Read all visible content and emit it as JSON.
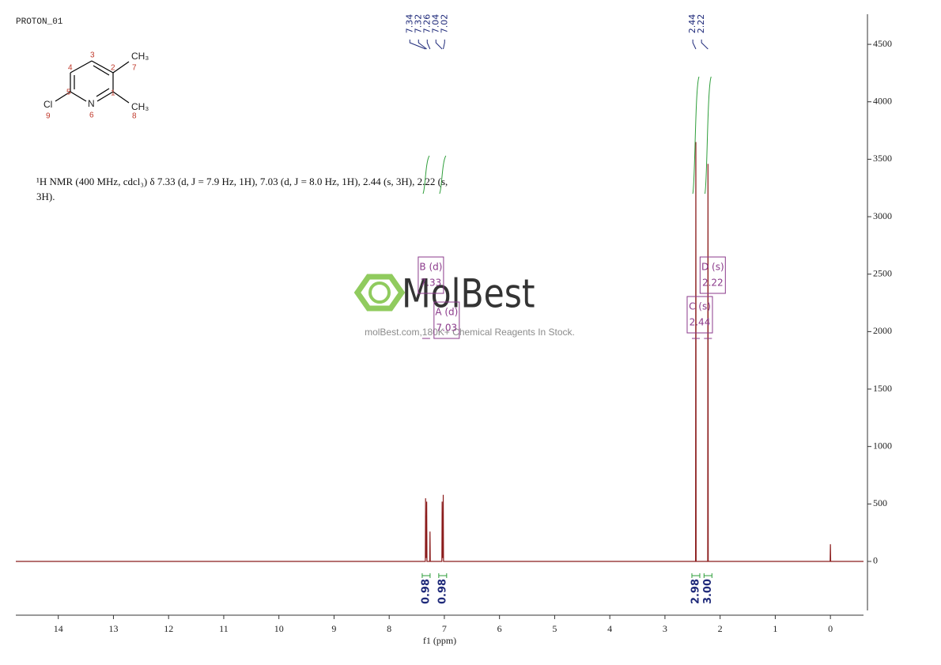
{
  "header": {
    "title": "PROTON_01"
  },
  "molecule": {
    "atoms": [
      "CH₃",
      "N",
      "Cl",
      "CH₃"
    ],
    "numbers": [
      "3",
      "4",
      "2",
      "5",
      "1",
      "6",
      "7",
      "8",
      "9"
    ]
  },
  "description": "¹H NMR (400 MHz, cdcl₃) δ 7.33 (d, J = 7.9 Hz, 1H), 7.03 (d, J = 8.0 Hz, 1H), 2.44 (s, 3H), 2.22 (s, 3H).",
  "watermark": {
    "brand": "MolBest",
    "tagline": "molBest.com,180K+ Chemical Reagents In Stock."
  },
  "chart_data": {
    "type": "spectrum",
    "x_label": "f1 (ppm)",
    "color": "#8b1c1c",
    "xlim": [
      14.77,
      -0.6
    ],
    "xticks": [
      14,
      13,
      12,
      11,
      10,
      9,
      8,
      7,
      6,
      5,
      4,
      3,
      2,
      1,
      0
    ],
    "ylim": [
      -468,
      4762
    ],
    "yticks": [
      0,
      500,
      1000,
      1500,
      2000,
      2500,
      3000,
      3500,
      4000,
      4500
    ],
    "x": [
      14.77,
      7.37,
      7.345,
      7.34,
      7.335,
      7.33,
      7.325,
      7.32,
      7.315,
      7.28,
      7.265,
      7.26,
      7.255,
      7.06,
      7.045,
      7.04,
      7.035,
      7.03,
      7.025,
      7.02,
      7.015,
      6.99,
      2.47,
      2.445,
      2.44,
      2.435,
      2.25,
      2.225,
      2.22,
      2.215,
      0.02,
      0.005,
      0,
      -0.005,
      -0.6
    ],
    "values": [
      0,
      0,
      0,
      550,
      40,
      30,
      40,
      520,
      0,
      0,
      0,
      260,
      0,
      0,
      0,
      520,
      40,
      30,
      40,
      580,
      0,
      0,
      0,
      0,
      3650,
      0,
      0,
      0,
      3460,
      0,
      0,
      0,
      150,
      0,
      0
    ],
    "peaks": [
      7.34,
      7.32,
      7.26,
      7.04,
      7.02,
      2.44,
      2.22
    ],
    "multiplets": [
      {
        "label": "B (d)",
        "shift": 7.33,
        "integral": "0.98"
      },
      {
        "label": "A (d)",
        "shift": 7.03,
        "integral": "0.98"
      },
      {
        "label": "C (s)",
        "shift": 2.44,
        "integral": "2.98"
      },
      {
        "label": "D (s)",
        "shift": 2.22,
        "integral": "3.00"
      }
    ]
  }
}
